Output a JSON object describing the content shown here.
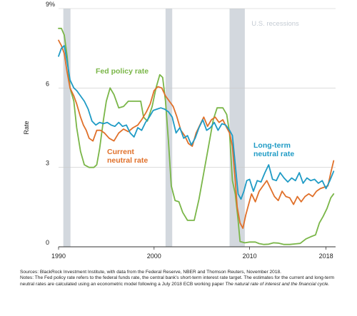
{
  "chart_data": {
    "type": "line",
    "ylabel": "Rate",
    "ylim": [
      0,
      9
    ],
    "xlim": [
      1990,
      2019
    ],
    "y_ticks": [
      {
        "value": 0,
        "label": "0"
      },
      {
        "value": 3,
        "label": "3"
      },
      {
        "value": 6,
        "label": "6"
      },
      {
        "value": 9,
        "label": "9%"
      }
    ],
    "x_ticks": [
      {
        "value": 1990,
        "label": "1990"
      },
      {
        "value": 2000,
        "label": "2000"
      },
      {
        "value": 2010,
        "label": "2010"
      },
      {
        "value": 2018,
        "label": "2018"
      }
    ],
    "recessions": [
      [
        1990.5,
        1991.25
      ],
      [
        2001.2,
        2001.9
      ],
      [
        2007.9,
        2009.5
      ]
    ],
    "recession_label": "U.S. recessions",
    "annotations": [
      {
        "text": "Fed policy rate",
        "series": "fed",
        "color": "#7ab648"
      },
      {
        "text": "Current",
        "series": "current",
        "color": "#e0702a"
      },
      {
        "text": "neutral rate",
        "series": "current",
        "color": "#e0702a"
      },
      {
        "text": "Long-term",
        "series": "longterm",
        "color": "#1f9bc5"
      },
      {
        "text": "neutral rate",
        "series": "longterm",
        "color": "#1f9bc5"
      }
    ],
    "series": [
      {
        "key": "fed",
        "color": "#7ab648",
        "points": [
          [
            1990,
            8.25
          ],
          [
            1990.3,
            8.25
          ],
          [
            1990.6,
            8.0
          ],
          [
            1990.9,
            7.2
          ],
          [
            1991.2,
            6.0
          ],
          [
            1991.6,
            5.5
          ],
          [
            1991.9,
            4.5
          ],
          [
            1992.3,
            3.6
          ],
          [
            1992.7,
            3.1
          ],
          [
            1993.2,
            3.0
          ],
          [
            1993.7,
            3.0
          ],
          [
            1994.0,
            3.1
          ],
          [
            1994.3,
            3.7
          ],
          [
            1994.7,
            4.8
          ],
          [
            1995.0,
            5.5
          ],
          [
            1995.4,
            6.0
          ],
          [
            1995.8,
            5.75
          ],
          [
            1996.3,
            5.25
          ],
          [
            1996.8,
            5.3
          ],
          [
            1997.3,
            5.5
          ],
          [
            1998.0,
            5.5
          ],
          [
            1998.6,
            5.5
          ],
          [
            1998.9,
            4.9
          ],
          [
            1999.3,
            4.75
          ],
          [
            1999.8,
            5.3
          ],
          [
            2000.2,
            6.0
          ],
          [
            2000.6,
            6.5
          ],
          [
            2000.9,
            6.4
          ],
          [
            2001.2,
            5.5
          ],
          [
            2001.5,
            4.0
          ],
          [
            2001.8,
            2.3
          ],
          [
            2002.2,
            1.75
          ],
          [
            2002.6,
            1.7
          ],
          [
            2003.0,
            1.3
          ],
          [
            2003.5,
            1.0
          ],
          [
            2004.2,
            1.0
          ],
          [
            2004.7,
            1.8
          ],
          [
            2005.2,
            2.8
          ],
          [
            2005.7,
            3.8
          ],
          [
            2006.2,
            4.8
          ],
          [
            2006.6,
            5.25
          ],
          [
            2007.2,
            5.25
          ],
          [
            2007.6,
            5.0
          ],
          [
            2007.9,
            4.3
          ],
          [
            2008.2,
            2.5
          ],
          [
            2008.5,
            2.0
          ],
          [
            2008.8,
            1.0
          ],
          [
            2009.0,
            0.2
          ],
          [
            2009.5,
            0.15
          ],
          [
            2010.0,
            0.18
          ],
          [
            2010.6,
            0.18
          ],
          [
            2011.0,
            0.12
          ],
          [
            2011.5,
            0.09
          ],
          [
            2012.0,
            0.1
          ],
          [
            2012.5,
            0.15
          ],
          [
            2013.0,
            0.14
          ],
          [
            2013.6,
            0.09
          ],
          [
            2014.2,
            0.09
          ],
          [
            2014.8,
            0.11
          ],
          [
            2015.3,
            0.13
          ],
          [
            2015.9,
            0.3
          ],
          [
            2016.4,
            0.38
          ],
          [
            2016.9,
            0.45
          ],
          [
            2017.3,
            0.9
          ],
          [
            2017.7,
            1.15
          ],
          [
            2018.1,
            1.45
          ],
          [
            2018.5,
            1.85
          ],
          [
            2018.8,
            2.0
          ]
        ]
      },
      {
        "key": "current",
        "color": "#e0702a",
        "points": [
          [
            1990,
            7.8
          ],
          [
            1990.3,
            7.6
          ],
          [
            1990.6,
            7.3
          ],
          [
            1990.9,
            6.6
          ],
          [
            1991.2,
            6.0
          ],
          [
            1991.6,
            5.7
          ],
          [
            1991.9,
            5.4
          ],
          [
            1992.3,
            4.9
          ],
          [
            1992.6,
            4.6
          ],
          [
            1992.9,
            4.4
          ],
          [
            1993.2,
            4.1
          ],
          [
            1993.6,
            4.0
          ],
          [
            1994.0,
            4.4
          ],
          [
            1994.4,
            4.4
          ],
          [
            1994.8,
            4.3
          ],
          [
            1995.3,
            4.1
          ],
          [
            1995.8,
            4.0
          ],
          [
            1996.3,
            4.3
          ],
          [
            1996.8,
            4.45
          ],
          [
            1997.3,
            4.35
          ],
          [
            1997.8,
            4.5
          ],
          [
            1998.3,
            4.6
          ],
          [
            1998.7,
            4.8
          ],
          [
            1999.2,
            5.1
          ],
          [
            1999.6,
            5.4
          ],
          [
            2000.0,
            5.9
          ],
          [
            2000.4,
            6.05
          ],
          [
            2000.8,
            6.0
          ],
          [
            2001.2,
            5.7
          ],
          [
            2001.6,
            5.5
          ],
          [
            2002.0,
            5.3
          ],
          [
            2002.4,
            4.9
          ],
          [
            2002.8,
            4.4
          ],
          [
            2003.2,
            4.2
          ],
          [
            2003.6,
            3.9
          ],
          [
            2004.0,
            3.8
          ],
          [
            2004.4,
            4.3
          ],
          [
            2004.8,
            4.6
          ],
          [
            2005.2,
            4.9
          ],
          [
            2005.6,
            4.55
          ],
          [
            2006.0,
            4.8
          ],
          [
            2006.4,
            4.9
          ],
          [
            2006.8,
            4.7
          ],
          [
            2007.2,
            4.8
          ],
          [
            2007.6,
            4.5
          ],
          [
            2007.9,
            4.3
          ],
          [
            2008.2,
            3.8
          ],
          [
            2008.5,
            2.5
          ],
          [
            2008.7,
            1.5
          ],
          [
            2009.0,
            0.9
          ],
          [
            2009.3,
            0.7
          ],
          [
            2009.6,
            1.2
          ],
          [
            2009.9,
            1.6
          ],
          [
            2010.2,
            2.0
          ],
          [
            2010.6,
            1.7
          ],
          [
            2011.0,
            2.1
          ],
          [
            2011.4,
            2.3
          ],
          [
            2011.8,
            2.5
          ],
          [
            2012.2,
            2.2
          ],
          [
            2012.6,
            1.9
          ],
          [
            2013.0,
            1.75
          ],
          [
            2013.4,
            2.1
          ],
          [
            2013.8,
            1.9
          ],
          [
            2014.2,
            1.85
          ],
          [
            2014.6,
            1.6
          ],
          [
            2015.0,
            1.9
          ],
          [
            2015.4,
            1.7
          ],
          [
            2015.8,
            1.9
          ],
          [
            2016.2,
            2.0
          ],
          [
            2016.6,
            1.9
          ],
          [
            2017.0,
            2.1
          ],
          [
            2017.4,
            2.2
          ],
          [
            2017.8,
            2.25
          ],
          [
            2018.2,
            2.3
          ],
          [
            2018.5,
            2.8
          ],
          [
            2018.8,
            3.25
          ]
        ]
      },
      {
        "key": "longterm",
        "color": "#1f9bc5",
        "points": [
          [
            1990,
            7.2
          ],
          [
            1990.3,
            7.5
          ],
          [
            1990.6,
            7.6
          ],
          [
            1990.9,
            7.0
          ],
          [
            1991.2,
            6.3
          ],
          [
            1991.6,
            6.0
          ],
          [
            1991.9,
            5.9
          ],
          [
            1992.3,
            5.7
          ],
          [
            1992.7,
            5.5
          ],
          [
            1993.1,
            5.2
          ],
          [
            1993.5,
            4.75
          ],
          [
            1993.9,
            4.6
          ],
          [
            1994.3,
            4.7
          ],
          [
            1994.7,
            4.65
          ],
          [
            1995.1,
            4.7
          ],
          [
            1995.5,
            4.6
          ],
          [
            1995.9,
            4.55
          ],
          [
            1996.3,
            4.7
          ],
          [
            1996.7,
            4.55
          ],
          [
            1997.1,
            4.6
          ],
          [
            1997.5,
            4.3
          ],
          [
            1997.9,
            4.15
          ],
          [
            1998.3,
            4.5
          ],
          [
            1998.7,
            4.4
          ],
          [
            1999.1,
            4.7
          ],
          [
            1999.5,
            4.9
          ],
          [
            1999.9,
            5.15
          ],
          [
            2000.3,
            5.2
          ],
          [
            2000.7,
            5.25
          ],
          [
            2001.1,
            5.2
          ],
          [
            2001.5,
            5.1
          ],
          [
            2001.9,
            4.9
          ],
          [
            2002.3,
            4.3
          ],
          [
            2002.7,
            4.5
          ],
          [
            2003.1,
            4.1
          ],
          [
            2003.5,
            4.2
          ],
          [
            2003.9,
            3.85
          ],
          [
            2004.3,
            4.1
          ],
          [
            2004.7,
            4.5
          ],
          [
            2005.1,
            4.8
          ],
          [
            2005.5,
            4.4
          ],
          [
            2005.9,
            4.5
          ],
          [
            2006.3,
            4.7
          ],
          [
            2006.7,
            4.4
          ],
          [
            2007.1,
            4.65
          ],
          [
            2007.5,
            4.6
          ],
          [
            2007.9,
            4.4
          ],
          [
            2008.2,
            4.2
          ],
          [
            2008.5,
            3.1
          ],
          [
            2008.8,
            2.0
          ],
          [
            2009.1,
            1.8
          ],
          [
            2009.4,
            2.1
          ],
          [
            2009.7,
            2.5
          ],
          [
            2010.0,
            2.55
          ],
          [
            2010.4,
            2.1
          ],
          [
            2010.8,
            2.5
          ],
          [
            2011.2,
            2.45
          ],
          [
            2011.6,
            2.8
          ],
          [
            2012.0,
            3.1
          ],
          [
            2012.4,
            2.55
          ],
          [
            2012.8,
            2.5
          ],
          [
            2013.2,
            2.8
          ],
          [
            2013.6,
            2.6
          ],
          [
            2014.0,
            2.45
          ],
          [
            2014.4,
            2.6
          ],
          [
            2014.8,
            2.5
          ],
          [
            2015.2,
            2.8
          ],
          [
            2015.6,
            2.4
          ],
          [
            2016.0,
            2.6
          ],
          [
            2016.4,
            2.5
          ],
          [
            2016.8,
            2.55
          ],
          [
            2017.2,
            2.4
          ],
          [
            2017.6,
            2.5
          ],
          [
            2018.0,
            2.2
          ],
          [
            2018.4,
            2.5
          ],
          [
            2018.8,
            2.85
          ]
        ]
      }
    ]
  },
  "notes": {
    "sources": "Sources: BlackRock Investment Institute, with data from the Federal Reserve, NBER and Thomson Reuters, November 2018.",
    "notes_text": "Notes: The Fed policy rate refers to the federal funds rate, the central bank’s short-term interest rate target. The estimates for the current and long-term neutral rates are calculated using an econometric model following a July 2018 ECB working paper",
    "paper_title": "The natural rate of interest and the financial cycle."
  }
}
